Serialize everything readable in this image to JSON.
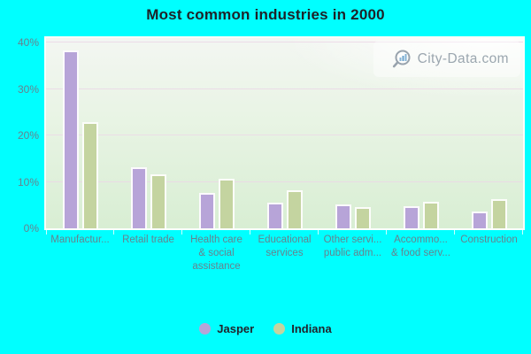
{
  "title": "Most common industries in 2000",
  "watermark": "City-Data.com",
  "y_axis": {
    "tick_labels": [
      "0%",
      "10%",
      "20%",
      "30%",
      "40%"
    ]
  },
  "legend": {
    "items": [
      {
        "label": "Jasper",
        "color": "#b7a4d8"
      },
      {
        "label": "Indiana",
        "color": "#c4d4a0"
      }
    ]
  },
  "chart_data": {
    "type": "bar",
    "title": "Most common industries in 2000",
    "categories": [
      "Manufactur...",
      "Retail trade",
      "Health care & social assistance",
      "Educational services",
      "Other servi... public adm...",
      "Accommo... & food serv...",
      "Construction"
    ],
    "category_display_lines": [
      [
        "Manufactur..."
      ],
      [
        "Retail trade"
      ],
      [
        "Health care",
        "& social",
        "assistance"
      ],
      [
        "Educational",
        "services"
      ],
      [
        "Other servi...",
        "public adm..."
      ],
      [
        "Accommo...",
        "& food serv..."
      ],
      [
        "Construction"
      ]
    ],
    "series": [
      {
        "name": "Jasper",
        "color": "#b7a4d8",
        "values": [
          38.4,
          13.2,
          7.6,
          5.5,
          5.2,
          4.8,
          3.7
        ]
      },
      {
        "name": "Indiana",
        "color": "#c4d4a0",
        "values": [
          23.0,
          11.7,
          10.7,
          8.3,
          4.5,
          5.7,
          6.4
        ]
      }
    ],
    "xlabel": "",
    "ylabel": "",
    "ylim": [
      0,
      40
    ],
    "yticks_percent": [
      0,
      10,
      20,
      30,
      40
    ],
    "grid": true,
    "legend_position": "bottom",
    "colors": {
      "page_background": "#00ffff",
      "plot_background_top": "#f3f6f2",
      "plot_background_bottom": "#d8eed3",
      "gridline": "#ebd7e6",
      "axis_text": "#67828e",
      "title_text": "#1e2228"
    }
  }
}
